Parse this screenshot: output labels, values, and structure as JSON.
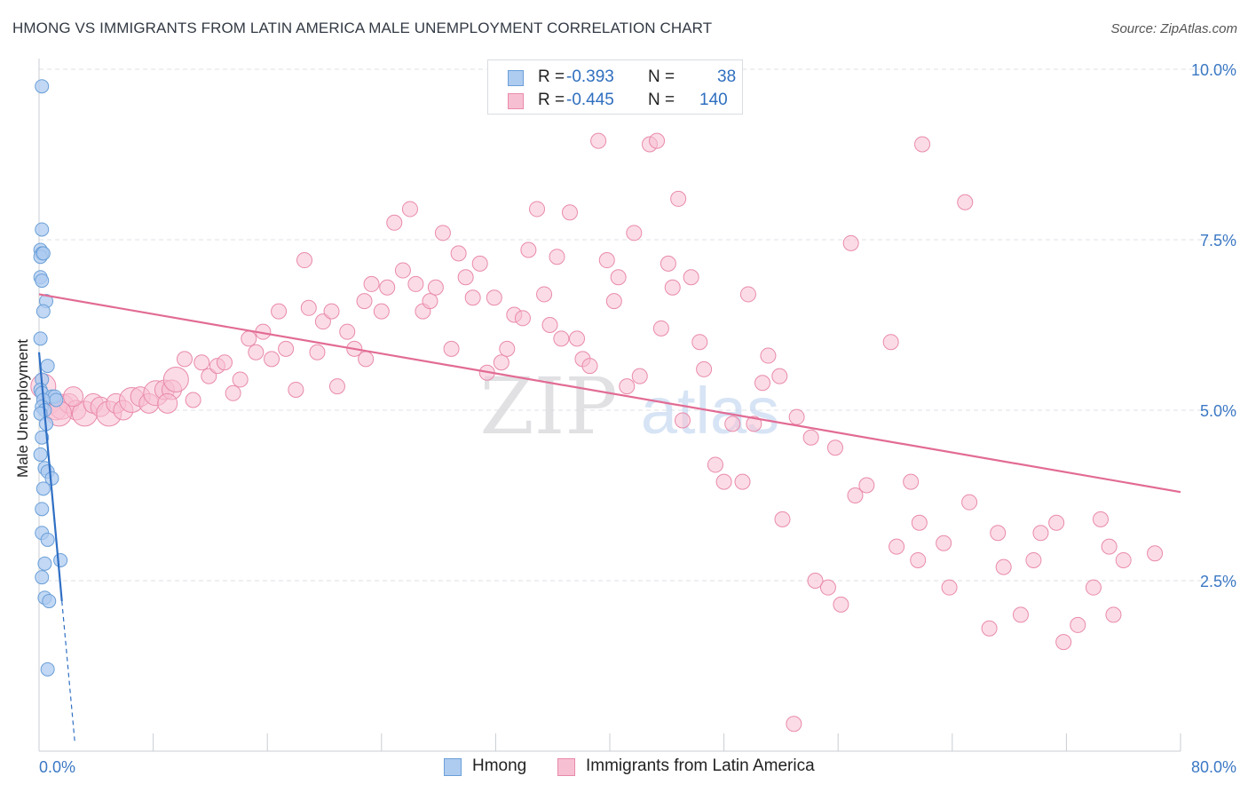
{
  "header": {
    "title": "HMONG VS IMMIGRANTS FROM LATIN AMERICA MALE UNEMPLOYMENT CORRELATION CHART",
    "source": "Source: ZipAtlas.com"
  },
  "watermark": {
    "zip": "ZIP",
    "atlas": "atlas"
  },
  "legend": {
    "rows": [
      {
        "label": "R =",
        "r_value": "-0.393",
        "n_label": "N =",
        "n_value": "38"
      },
      {
        "label": "R =",
        "r_value": "-0.445",
        "n_label": "N =",
        "n_value": "140"
      }
    ]
  },
  "bottom_legend": {
    "hmong": "Hmong",
    "latin": "Immigrants from Latin America"
  },
  "colors": {
    "hmong_fill": "#aecbf0",
    "hmong_stroke": "#6a9fd8",
    "hmong_line": "#2f6fc4",
    "latin_fill": "#f7c0d2",
    "latin_stroke": "#e98aab",
    "latin_line": "#e26b94",
    "tick_label": "#3b78c4",
    "grid": "#dde1e7"
  },
  "chart_data": {
    "type": "scatter",
    "title": "HMONG VS IMMIGRANTS FROM LATIN AMERICA MALE UNEMPLOYMENT CORRELATION CHART",
    "xlabel": "",
    "ylabel": "Male Unemployment",
    "xlim": [
      0,
      80
    ],
    "ylim": [
      0,
      10
    ],
    "x_tick_labels": [
      "0.0%",
      "80.0%"
    ],
    "y_ticks": [
      2.5,
      5.0,
      7.5,
      10.0
    ],
    "y_tick_labels": [
      "2.5%",
      "5.0%",
      "7.5%",
      "10.0%"
    ],
    "grid": true,
    "series": [
      {
        "name": "Hmong",
        "R": -0.393,
        "N": 38,
        "trend": {
          "x0": 0,
          "y0": 5.85,
          "x1": 1.6,
          "y1": 2.2,
          "dash_x_end": 2.5
        },
        "points": [
          [
            0.2,
            9.75
          ],
          [
            0.2,
            7.65
          ],
          [
            0.1,
            7.35
          ],
          [
            0.2,
            7.3
          ],
          [
            0.1,
            7.25
          ],
          [
            0.3,
            7.3
          ],
          [
            0.1,
            6.95
          ],
          [
            0.2,
            6.9
          ],
          [
            0.5,
            6.6
          ],
          [
            0.3,
            6.45
          ],
          [
            0.1,
            6.05
          ],
          [
            0.6,
            5.65
          ],
          [
            0.2,
            5.45
          ],
          [
            0.1,
            5.3
          ],
          [
            0.2,
            5.25
          ],
          [
            0.9,
            5.2
          ],
          [
            1.1,
            5.2
          ],
          [
            1.2,
            5.15
          ],
          [
            0.3,
            5.15
          ],
          [
            0.2,
            5.05
          ],
          [
            0.4,
            5.0
          ],
          [
            0.1,
            4.95
          ],
          [
            0.5,
            4.8
          ],
          [
            0.2,
            4.6
          ],
          [
            0.4,
            4.15
          ],
          [
            0.6,
            4.1
          ],
          [
            0.9,
            4.0
          ],
          [
            0.2,
            3.55
          ],
          [
            0.2,
            3.2
          ],
          [
            0.6,
            3.1
          ],
          [
            0.4,
            2.75
          ],
          [
            1.5,
            2.8
          ],
          [
            0.2,
            2.55
          ],
          [
            0.4,
            2.25
          ],
          [
            0.7,
            2.2
          ],
          [
            0.6,
            1.2
          ],
          [
            0.1,
            4.35
          ],
          [
            0.3,
            3.85
          ]
        ]
      },
      {
        "name": "Immigrants from Latin America",
        "R": -0.445,
        "N": 140,
        "trend": {
          "x0": 0,
          "y0": 6.7,
          "x1": 80,
          "y1": 3.8
        },
        "points": [
          [
            0.3,
            5.35
          ],
          [
            0.8,
            5.1
          ],
          [
            1.2,
            5.0
          ],
          [
            1.6,
            5.05
          ],
          [
            2.1,
            5.1
          ],
          [
            2.6,
            5.0
          ],
          [
            3.2,
            4.95
          ],
          [
            3.8,
            5.1
          ],
          [
            4.3,
            5.05
          ],
          [
            4.9,
            4.95
          ],
          [
            5.4,
            5.1
          ],
          [
            5.9,
            5.0
          ],
          [
            6.5,
            5.15
          ],
          [
            7.1,
            5.2
          ],
          [
            7.7,
            5.1
          ],
          [
            8.2,
            5.25
          ],
          [
            8.8,
            5.3
          ],
          [
            9.3,
            5.3
          ],
          [
            1.4,
            4.95
          ],
          [
            2.4,
            5.2
          ],
          [
            9.0,
            5.1
          ],
          [
            9.6,
            5.45
          ],
          [
            10.2,
            5.75
          ],
          [
            10.8,
            5.15
          ],
          [
            11.4,
            5.7
          ],
          [
            11.9,
            5.5
          ],
          [
            12.5,
            5.65
          ],
          [
            13.0,
            5.7
          ],
          [
            13.6,
            5.25
          ],
          [
            14.1,
            5.45
          ],
          [
            14.7,
            6.05
          ],
          [
            15.2,
            5.85
          ],
          [
            15.7,
            6.15
          ],
          [
            16.3,
            5.75
          ],
          [
            16.8,
            6.45
          ],
          [
            17.3,
            5.9
          ],
          [
            18.0,
            5.3
          ],
          [
            18.6,
            7.2
          ],
          [
            18.9,
            6.5
          ],
          [
            19.5,
            5.85
          ],
          [
            19.9,
            6.3
          ],
          [
            20.5,
            6.45
          ],
          [
            20.9,
            5.35
          ],
          [
            21.6,
            6.15
          ],
          [
            22.1,
            5.9
          ],
          [
            22.8,
            6.6
          ],
          [
            22.9,
            5.75
          ],
          [
            23.3,
            6.85
          ],
          [
            24.0,
            6.45
          ],
          [
            24.4,
            6.8
          ],
          [
            24.9,
            7.75
          ],
          [
            25.5,
            7.05
          ],
          [
            26.0,
            7.95
          ],
          [
            26.4,
            6.85
          ],
          [
            26.9,
            6.45
          ],
          [
            27.4,
            6.6
          ],
          [
            27.8,
            6.8
          ],
          [
            28.3,
            7.6
          ],
          [
            28.9,
            5.9
          ],
          [
            29.4,
            7.3
          ],
          [
            29.9,
            6.95
          ],
          [
            30.4,
            6.65
          ],
          [
            30.9,
            7.15
          ],
          [
            31.4,
            5.55
          ],
          [
            31.9,
            6.65
          ],
          [
            32.4,
            5.7
          ],
          [
            32.8,
            5.9
          ],
          [
            33.3,
            6.4
          ],
          [
            33.9,
            6.35
          ],
          [
            34.3,
            7.35
          ],
          [
            34.9,
            7.95
          ],
          [
            35.4,
            6.7
          ],
          [
            35.8,
            6.25
          ],
          [
            36.3,
            7.25
          ],
          [
            36.6,
            6.05
          ],
          [
            37.2,
            7.9
          ],
          [
            37.7,
            6.05
          ],
          [
            38.1,
            5.75
          ],
          [
            38.6,
            5.65
          ],
          [
            39.2,
            8.95
          ],
          [
            39.8,
            7.2
          ],
          [
            40.3,
            6.6
          ],
          [
            40.6,
            6.95
          ],
          [
            41.2,
            5.35
          ],
          [
            41.7,
            7.6
          ],
          [
            42.1,
            5.5
          ],
          [
            42.8,
            8.9
          ],
          [
            43.3,
            8.95
          ],
          [
            43.6,
            6.2
          ],
          [
            44.1,
            7.15
          ],
          [
            44.4,
            6.8
          ],
          [
            44.8,
            8.1
          ],
          [
            45.1,
            4.85
          ],
          [
            45.7,
            6.95
          ],
          [
            46.3,
            6.0
          ],
          [
            46.6,
            5.6
          ],
          [
            47.4,
            4.2
          ],
          [
            48.0,
            3.95
          ],
          [
            48.6,
            4.8
          ],
          [
            49.3,
            3.95
          ],
          [
            49.7,
            6.7
          ],
          [
            50.1,
            4.8
          ],
          [
            50.7,
            5.4
          ],
          [
            51.1,
            5.8
          ],
          [
            51.9,
            5.5
          ],
          [
            52.1,
            3.4
          ],
          [
            53.1,
            4.9
          ],
          [
            54.1,
            4.6
          ],
          [
            54.4,
            2.5
          ],
          [
            55.3,
            2.4
          ],
          [
            55.8,
            4.45
          ],
          [
            56.2,
            2.15
          ],
          [
            56.9,
            7.45
          ],
          [
            57.2,
            3.75
          ],
          [
            58.0,
            3.9
          ],
          [
            59.7,
            6.0
          ],
          [
            60.1,
            3.0
          ],
          [
            61.1,
            3.95
          ],
          [
            61.6,
            2.8
          ],
          [
            61.7,
            3.35
          ],
          [
            61.9,
            8.9
          ],
          [
            63.4,
            3.05
          ],
          [
            63.8,
            2.4
          ],
          [
            64.9,
            8.05
          ],
          [
            65.2,
            3.65
          ],
          [
            66.6,
            1.8
          ],
          [
            67.2,
            3.2
          ],
          [
            67.6,
            2.7
          ],
          [
            68.8,
            2.0
          ],
          [
            69.7,
            2.8
          ],
          [
            70.2,
            3.2
          ],
          [
            71.3,
            3.35
          ],
          [
            71.8,
            1.6
          ],
          [
            72.8,
            1.85
          ],
          [
            73.9,
            2.4
          ],
          [
            74.4,
            3.4
          ],
          [
            75.0,
            3.0
          ],
          [
            75.3,
            2.0
          ],
          [
            76.0,
            2.8
          ],
          [
            78.2,
            2.9
          ],
          [
            52.9,
            0.4
          ]
        ]
      }
    ]
  }
}
